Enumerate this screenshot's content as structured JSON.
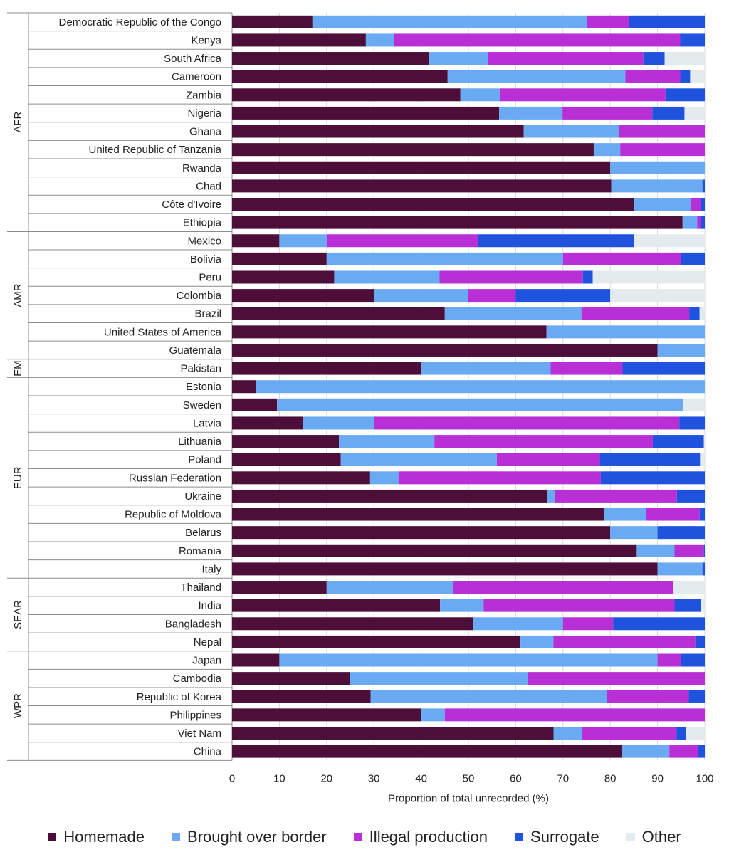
{
  "chart_data": {
    "type": "bar",
    "orientation": "horizontal",
    "stacked": true,
    "xlabel": "Proportion of total unrecorded (%)",
    "xlim": [
      0,
      100
    ],
    "xticks": [
      "0",
      "10",
      "20",
      "30",
      "40",
      "50",
      "60",
      "70",
      "80",
      "90",
      "100"
    ],
    "legend_position": "bottom",
    "series": [
      {
        "name": "Homemade",
        "color": "#4d0f3a"
      },
      {
        "name": "Brought over border",
        "color": "#6aaaf2"
      },
      {
        "name": "Illegal production",
        "color": "#b82fd6"
      },
      {
        "name": "Surrogate",
        "color": "#1f52dd"
      },
      {
        "name": "Other",
        "color": "#e4ebee"
      }
    ],
    "groups": [
      {
        "region": "AFR",
        "countries": [
          {
            "name": "Democratic Republic of the Congo",
            "values": [
              17,
              58,
              9,
              16,
              0
            ]
          },
          {
            "name": "Kenya",
            "values": [
              28.3,
              5.9,
              60.6,
              5.2,
              0
            ]
          },
          {
            "name": "South Africa",
            "values": [
              41.7,
              12.5,
              32.8,
              4.5,
              8.5
            ]
          },
          {
            "name": "Cameroon",
            "values": [
              45.6,
              37.6,
              11.6,
              2.1,
              3.1
            ]
          },
          {
            "name": "Zambia",
            "values": [
              48.3,
              8.3,
              35.1,
              8.3,
              0
            ]
          },
          {
            "name": "Nigeria",
            "values": [
              56.5,
              13.4,
              19,
              6.8,
              4.3
            ]
          },
          {
            "name": "Ghana",
            "values": [
              61.7,
              20.1,
              18.2,
              0,
              0
            ]
          },
          {
            "name": "United Republic of Tanzania",
            "values": [
              76.5,
              5.6,
              17.9,
              0,
              0
            ]
          },
          {
            "name": "Rwanda",
            "values": [
              80,
              20,
              0,
              0,
              0
            ]
          },
          {
            "name": "Chad",
            "values": [
              80.2,
              19.3,
              0,
              0.5,
              0
            ]
          },
          {
            "name": "Côte d'Ivoire",
            "values": [
              85,
              12,
              2.2,
              0.8,
              0
            ]
          },
          {
            "name": "Ethiopia",
            "values": [
              95.3,
              3.1,
              0.8,
              0.8,
              0
            ]
          }
        ]
      },
      {
        "region": "AMR",
        "countries": [
          {
            "name": "Mexico",
            "values": [
              10,
              10,
              32,
              33,
              15
            ]
          },
          {
            "name": "Bolivia",
            "values": [
              20,
              50,
              25,
              5,
              0
            ]
          },
          {
            "name": "Peru",
            "values": [
              21.6,
              22.3,
              30.3,
              2.1,
              23.7
            ]
          },
          {
            "name": "Colombia",
            "values": [
              30,
              20,
              10,
              20,
              20
            ]
          },
          {
            "name": "Brazil",
            "values": [
              45,
              28.9,
              22.8,
              2.2,
              1.1
            ]
          },
          {
            "name": "United States of America",
            "values": [
              66.5,
              33.5,
              0,
              0,
              0
            ]
          },
          {
            "name": "Guatemala",
            "values": [
              90,
              10,
              0,
              0,
              0
            ]
          }
        ]
      },
      {
        "region": "EM",
        "countries": [
          {
            "name": "Pakistan",
            "values": [
              40,
              27.4,
              15.2,
              17.4,
              0
            ]
          }
        ]
      },
      {
        "region": "EUR",
        "countries": [
          {
            "name": "Estonia",
            "values": [
              5,
              95,
              0,
              0,
              0
            ]
          },
          {
            "name": "Sweden",
            "values": [
              9.5,
              86,
              0,
              0,
              4.5
            ]
          },
          {
            "name": "Latvia",
            "values": [
              15,
              15,
              64.6,
              5.4,
              0
            ]
          },
          {
            "name": "Lithuania",
            "values": [
              22.6,
              20.2,
              46.2,
              10.8,
              0.2
            ]
          },
          {
            "name": "Poland",
            "values": [
              23,
              33,
              21.8,
              21.2,
              1
            ]
          },
          {
            "name": "Russian Federation",
            "values": [
              29.2,
              6,
              42.8,
              22,
              0
            ]
          },
          {
            "name": "Ukraine",
            "values": [
              66.7,
              1.6,
              25.8,
              5.9,
              0
            ]
          },
          {
            "name": "Republic of Moldova",
            "values": [
              78.8,
              8.8,
              11.3,
              1.1,
              0
            ]
          },
          {
            "name": "Belarus",
            "values": [
              80,
              10,
              0,
              10,
              0
            ]
          },
          {
            "name": "Romania",
            "values": [
              85.6,
              8,
              6.2,
              0.2,
              0
            ]
          },
          {
            "name": "Italy",
            "values": [
              90,
              9.5,
              0,
              0.5,
              0
            ]
          }
        ]
      },
      {
        "region": "SEAR",
        "countries": [
          {
            "name": "Thailand",
            "values": [
              20,
              26.7,
              46.7,
              0,
              6.6
            ]
          },
          {
            "name": "India",
            "values": [
              44,
              9.2,
              40.4,
              5.6,
              0.8
            ]
          },
          {
            "name": "Bangladesh",
            "values": [
              51,
              19,
              10.6,
              19.4,
              0
            ]
          },
          {
            "name": "Nepal",
            "values": [
              61,
              7,
              30,
              2,
              0
            ]
          }
        ]
      },
      {
        "region": "WPR",
        "countries": [
          {
            "name": "Japan",
            "values": [
              10,
              80,
              5,
              5,
              0
            ]
          },
          {
            "name": "Cambodia",
            "values": [
              25,
              37.5,
              37.5,
              0,
              0
            ]
          },
          {
            "name": "Republic of Korea",
            "values": [
              29.3,
              50,
              17.3,
              3.4,
              0
            ]
          },
          {
            "name": "Philippines",
            "values": [
              40,
              5,
              55,
              0,
              0
            ]
          },
          {
            "name": "Viet Nam",
            "values": [
              68,
              6,
              20,
              2,
              4
            ]
          },
          {
            "name": "China",
            "values": [
              82.5,
              10,
              6,
              1.5,
              0
            ]
          }
        ]
      }
    ]
  }
}
